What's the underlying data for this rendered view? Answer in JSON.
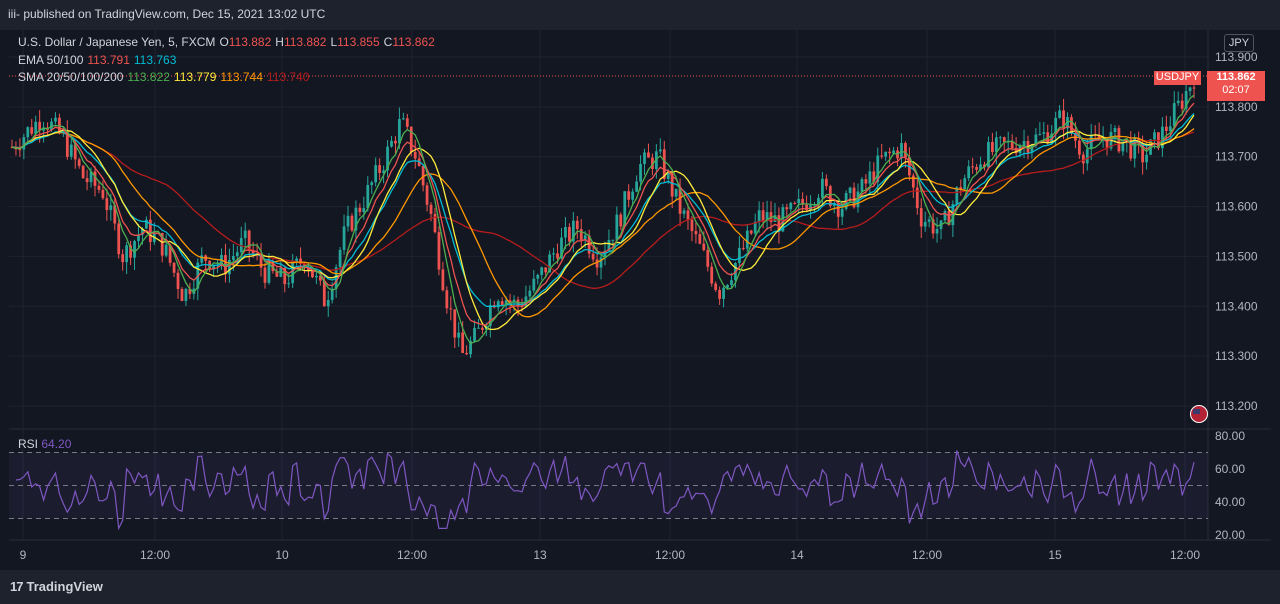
{
  "header": {
    "published_text": "iii- published on TradingView.com, Dec 15, 2021 13:02 UTC"
  },
  "legend": {
    "symbol": "U.S. Dollar / Japanese Yen, 5, FXCM",
    "o_label": "O",
    "o_value": "113.882",
    "h_label": "H",
    "h_value": "113.882",
    "l_label": "L",
    "l_value": "113.855",
    "c_label": "C",
    "c_value": "113.862",
    "ema_label": "EMA 50/100",
    "ema_values": [
      "113.791",
      "113.763"
    ],
    "sma_label": "SMA 20/50/100/200",
    "sma_values": [
      "113.822",
      "113.779",
      "113.744",
      "113.740"
    ],
    "rsi_label": "RSI",
    "rsi_value": "64.20"
  },
  "price_axis": {
    "currency": "JPY",
    "ticks": [
      "113.900",
      "113.800",
      "113.700",
      "113.600",
      "113.500",
      "113.400",
      "113.300",
      "113.200"
    ],
    "last_price": "113.862",
    "countdown": "02:07",
    "symbol_badge": "USDJPY"
  },
  "rsi_axis": {
    "ticks": [
      "80.00",
      "60.00",
      "40.00",
      "20.00"
    ]
  },
  "time_axis": {
    "ticks": [
      "9",
      "12:00",
      "10",
      "12:00",
      "13",
      "12:00",
      "14",
      "12:00",
      "15",
      "12:00"
    ]
  },
  "footer": {
    "brand": "TradingView"
  },
  "colors": {
    "background": "#131722",
    "up": "#26a69a",
    "down": "#ef5350",
    "ema50": "#ef5350",
    "ema100": "#00bcd4",
    "sma20": "#4caf50",
    "sma50": "#ffeb3b",
    "sma100": "#ff9800",
    "sma200": "#b71c1c",
    "rsi": "#7e57c2"
  },
  "chart_data": {
    "type": "candlestick",
    "symbol": "USDJPY",
    "interval": "5",
    "ylim": [
      113.17,
      113.93
    ],
    "last_close": 113.862,
    "x_ticks": [
      "9",
      "12:00",
      "10",
      "12:00",
      "13",
      "12:00",
      "14",
      "12:00",
      "15",
      "12:00"
    ],
    "close_path": [
      [
        0,
        113.72
      ],
      [
        3,
        113.78
      ],
      [
        5,
        113.74
      ],
      [
        7,
        113.66
      ],
      [
        9,
        113.63
      ],
      [
        11,
        113.5
      ],
      [
        13,
        113.56
      ],
      [
        15,
        113.52
      ],
      [
        17,
        113.42
      ],
      [
        19,
        113.5
      ],
      [
        21,
        113.48
      ],
      [
        23,
        113.53
      ],
      [
        25,
        113.47
      ],
      [
        27,
        113.45
      ],
      [
        29,
        113.5
      ],
      [
        31,
        113.41
      ],
      [
        33,
        113.55
      ],
      [
        35,
        113.62
      ],
      [
        37,
        113.7
      ],
      [
        38.5,
        113.77
      ],
      [
        40,
        113.7
      ],
      [
        41.5,
        113.58
      ],
      [
        43,
        113.42
      ],
      [
        44.5,
        113.3
      ],
      [
        46,
        113.34
      ],
      [
        48,
        113.43
      ],
      [
        50,
        113.4
      ],
      [
        52,
        113.45
      ],
      [
        54,
        113.52
      ],
      [
        56,
        113.56
      ],
      [
        58,
        113.5
      ],
      [
        60,
        113.57
      ],
      [
        62,
        113.68
      ],
      [
        64,
        113.7
      ],
      [
        66,
        113.6
      ],
      [
        68,
        113.52
      ],
      [
        70,
        113.43
      ],
      [
        72,
        113.5
      ],
      [
        74,
        113.58
      ],
      [
        76,
        113.57
      ],
      [
        78,
        113.6
      ],
      [
        80,
        113.64
      ],
      [
        82,
        113.6
      ],
      [
        84,
        113.63
      ],
      [
        86,
        113.69
      ],
      [
        88,
        113.72
      ],
      [
        90,
        113.58
      ],
      [
        92,
        113.55
      ],
      [
        94,
        113.65
      ],
      [
        96,
        113.7
      ],
      [
        98,
        113.72
      ],
      [
        100,
        113.73
      ],
      [
        102,
        113.74
      ],
      [
        104,
        113.78
      ],
      [
        106,
        113.71
      ],
      [
        108,
        113.74
      ],
      [
        110,
        113.73
      ],
      [
        112,
        113.7
      ],
      [
        114,
        113.75
      ],
      [
        116,
        113.82
      ],
      [
        117,
        113.862
      ]
    ],
    "series": [
      {
        "name": "EMA 50",
        "last": 113.791
      },
      {
        "name": "EMA 100",
        "last": 113.763
      },
      {
        "name": "SMA 20",
        "last": 113.822
      },
      {
        "name": "SMA 50",
        "last": 113.779
      },
      {
        "name": "SMA 100",
        "last": 113.744
      },
      {
        "name": "SMA 200",
        "last": 113.74
      }
    ],
    "rsi": {
      "last": 64.2,
      "ylim": [
        18,
        82
      ],
      "bands": [
        30,
        50,
        70
      ],
      "ticks": [
        "80.00",
        "60.00",
        "40.00",
        "20.00"
      ]
    }
  }
}
